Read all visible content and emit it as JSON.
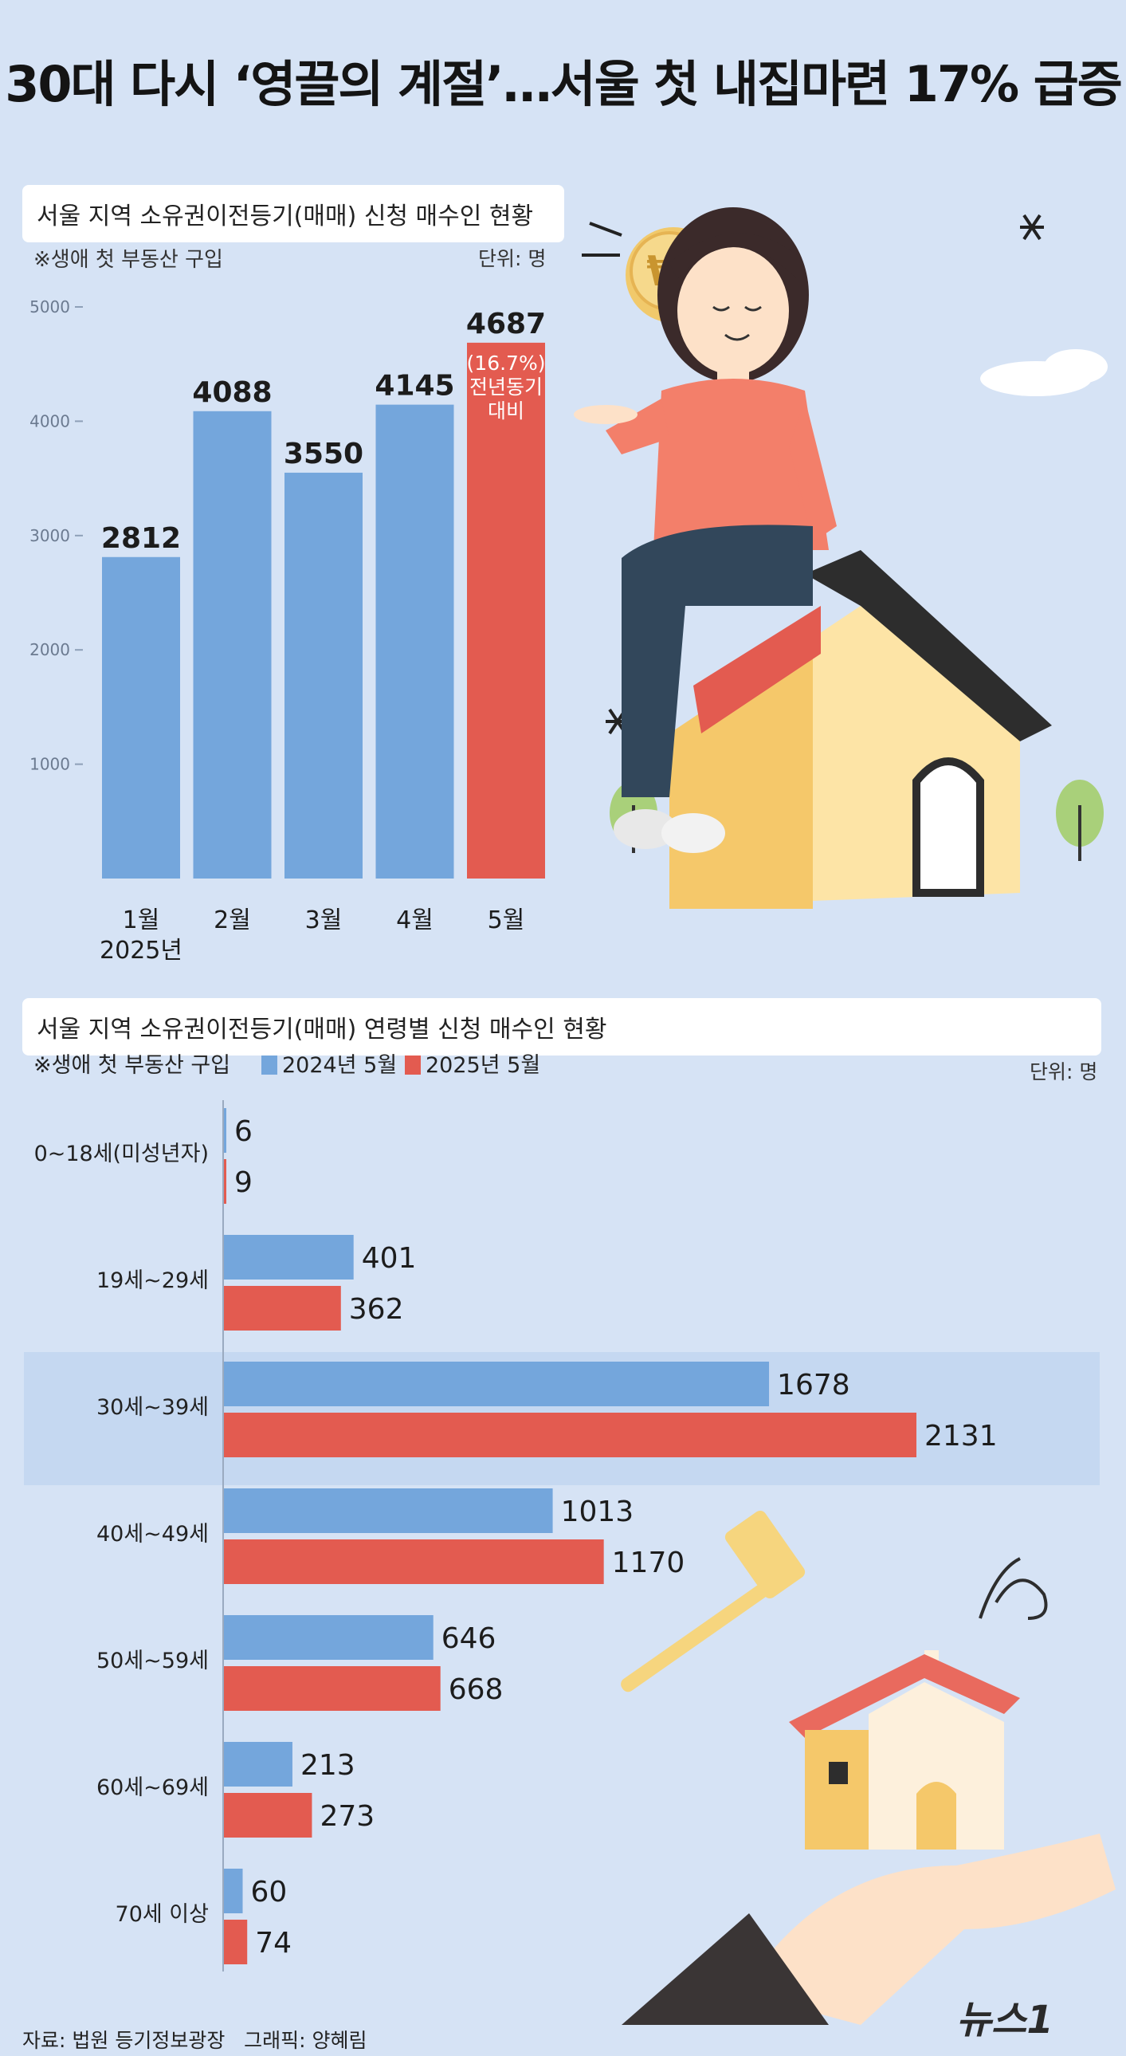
{
  "title": "30대 다시 ‘영끌의 계절’…서울 첫 내집마련 17% 급증",
  "colors": {
    "background": "#d6e3f5",
    "blue_bar": "#74a6dc",
    "red_bar": "#e35b50",
    "highlight_band": "#c5d8f1"
  },
  "chart_data": [
    {
      "type": "bar",
      "title": "서울 지역 소유권이전등기(매매) 신청 매수인 현황",
      "subtitle": "※생애 첫 부동산 구입",
      "unit": "단위: 명",
      "categories": [
        "1월",
        "2월",
        "3월",
        "4월",
        "5월"
      ],
      "year_label": "2025년",
      "values": [
        2812,
        4088,
        3550,
        4145,
        4687
      ],
      "ylim": [
        0,
        5000
      ],
      "yticks": [
        1000,
        2000,
        3000,
        4000,
        5000
      ],
      "annotation": {
        "category": "5월",
        "pct": "(16.7%)",
        "line1": "전년동기",
        "line2": "대비"
      }
    },
    {
      "type": "bar",
      "orientation": "horizontal",
      "title": "서울 지역 소유권이전등기(매매) 연령별 신청 매수인 현황",
      "subtitle": "※생애 첫 부동산 구입",
      "unit": "단위: 명",
      "categories": [
        "0~18세(미성년자)",
        "19세~29세",
        "30세~39세",
        "40세~49세",
        "50세~59세",
        "60세~69세",
        "70세 이상"
      ],
      "series": [
        {
          "name": "2024년 5월",
          "values": [
            6,
            401,
            1678,
            1013,
            646,
            213,
            60
          ]
        },
        {
          "name": "2025년 5월",
          "values": [
            9,
            362,
            2131,
            1170,
            668,
            273,
            74
          ]
        }
      ],
      "highlight": "30세~39세",
      "legend": "top-left"
    }
  ],
  "source": "자료: 법원 등기정보광장",
  "credit": "그래픽: 양혜림",
  "logo": "뉴스1"
}
